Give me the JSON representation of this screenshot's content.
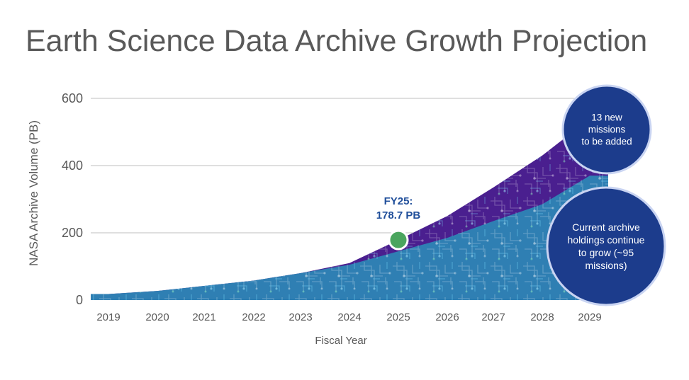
{
  "title": "Earth Science Data Archive Growth Projection",
  "chart_data": {
    "type": "area",
    "title": "Earth Science Data Archive Growth Projection",
    "xlabel": "Fiscal Year",
    "ylabel": "NASA  Archive Volume (PB)",
    "x": [
      2019,
      2020,
      2021,
      2022,
      2023,
      2024,
      2025,
      2026,
      2027,
      2028,
      2029
    ],
    "y_ticks": [
      0,
      200,
      400,
      600
    ],
    "ylim": [
      0,
      600
    ],
    "grid": true,
    "series": [
      {
        "name": "Current archive holdings continue to grow (~95 missions)",
        "values": [
          18,
          27,
          42,
          58,
          80,
          105,
          145,
          185,
          235,
          285,
          370
        ]
      },
      {
        "name": "13 new missions to be added",
        "values": [
          18,
          27,
          42,
          58,
          80,
          110,
          178.7,
          250,
          335,
          430,
          540
        ]
      }
    ],
    "highlight": {
      "x": 2025,
      "y": 178.7,
      "label": "FY25:\n178.7 PB",
      "label_lines": [
        "FY25:",
        "178.7 PB"
      ]
    },
    "annotations": [
      {
        "text": "13 new missions to be added",
        "lines": [
          "13 new",
          "missions",
          "to be added"
        ]
      },
      {
        "text": "Current archive holdings continue to grow (~95 missions)",
        "lines": [
          "Current archive",
          "holdings continue",
          "to grow (~95",
          "missions)"
        ]
      }
    ],
    "colors": {
      "current": "#2f7fb3",
      "new": "#4a1f8f",
      "highlight": "#4aa55e",
      "bubble": "#1c3c8c",
      "bubble_border": "#c9d4f2",
      "grid": "#bfbfbf",
      "text": "#595959",
      "fy_label": "#1f4e9a"
    }
  }
}
